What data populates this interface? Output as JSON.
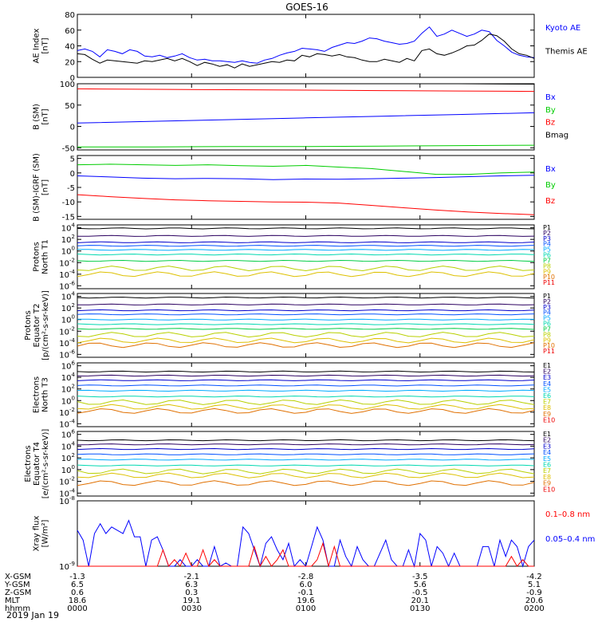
{
  "title": "GOES-16",
  "date_label": "2019 Jan 19",
  "colors": {
    "black": "#000000",
    "blue": "#0000ff",
    "red": "#ff0000",
    "green": "#00cc00",
    "p_colors": [
      "#000000",
      "#2b0060",
      "#0000cc",
      "#0050ff",
      "#00aaff",
      "#00d8b0",
      "#00cc44",
      "#b8d000",
      "#ddc000",
      "#e07000",
      "#ee0000"
    ],
    "e_colors": [
      "#000000",
      "#2b0060",
      "#0000cc",
      "#0050ff",
      "#00aaff",
      "#00d8b0",
      "#b8d000",
      "#ddc000",
      "#e07000",
      "#ee0000"
    ]
  },
  "chart_data": [
    {
      "id": "ae",
      "type": "line",
      "ylabel": [
        "AE Index",
        "[nT]"
      ],
      "ylim": [
        0,
        80
      ],
      "yticks": [
        "0",
        "20",
        "40",
        "60",
        "80"
      ],
      "legend": [
        {
          "label": "Kyoto AE",
          "color": "#0000ff"
        },
        {
          "label": "Themis AE",
          "color": "#000000"
        }
      ],
      "series": [
        {
          "name": "Kyoto AE",
          "color": "#0000ff",
          "values": [
            34,
            36,
            33,
            26,
            35,
            33,
            30,
            35,
            33,
            27,
            26,
            28,
            25,
            27,
            30,
            25,
            22,
            23,
            21,
            21,
            20,
            19,
            21,
            19,
            18,
            22,
            24,
            28,
            31,
            33,
            37,
            36,
            35,
            33,
            38,
            41,
            44,
            43,
            46,
            50,
            49,
            46,
            44,
            42,
            43,
            46,
            56,
            64,
            52,
            55,
            60,
            56,
            52,
            55,
            60,
            58,
            47,
            40,
            32,
            28,
            26,
            25
          ]
        },
        {
          "name": "Themis AE",
          "color": "#000000",
          "values": [
            30,
            29,
            23,
            18,
            22,
            21,
            20,
            19,
            18,
            21,
            20,
            22,
            24,
            21,
            24,
            20,
            15,
            19,
            17,
            14,
            16,
            12,
            17,
            14,
            16,
            18,
            20,
            19,
            22,
            21,
            28,
            26,
            30,
            29,
            27,
            29,
            26,
            25,
            22,
            20,
            20,
            23,
            21,
            19,
            24,
            21,
            34,
            36,
            30,
            28,
            31,
            35,
            40,
            41,
            47,
            55,
            53,
            46,
            36,
            30,
            28,
            24
          ]
        }
      ]
    },
    {
      "id": "bsm",
      "type": "line",
      "ylabel": [
        "B (SM)",
        "[nT]"
      ],
      "ylim": [
        -55,
        100
      ],
      "yticks": [
        "-50",
        "0",
        "50",
        "100"
      ],
      "legend": [
        {
          "label": "Bx",
          "color": "#0000ff"
        },
        {
          "label": "By",
          "color": "#00cc00"
        },
        {
          "label": "Bz",
          "color": "#ff0000"
        },
        {
          "label": "Bmag",
          "color": "#000000"
        }
      ],
      "series": [
        {
          "name": "Bx",
          "color": "#0000ff",
          "values": [
            8,
            12,
            16,
            20,
            24,
            28,
            32
          ]
        },
        {
          "name": "By",
          "color": "#00cc00",
          "values": [
            -48,
            -48,
            -47,
            -47,
            -46,
            -45,
            -44
          ]
        },
        {
          "name": "Bz",
          "color": "#ff0000",
          "values": [
            88,
            87,
            86,
            85,
            84,
            83,
            82
          ]
        },
        {
          "name": "Bmag",
          "color": "#000000",
          "values": [
            100,
            100,
            100,
            100,
            100,
            100,
            99
          ]
        }
      ]
    },
    {
      "id": "bdiff",
      "type": "line",
      "ylabel": [
        "B (SM)-IGRF (SM)",
        "[nT]"
      ],
      "ylim": [
        -16,
        6
      ],
      "yticks": [
        "-15",
        "-10",
        "-5",
        "0",
        "5"
      ],
      "legend": [
        {
          "label": "Bx",
          "color": "#0000ff"
        },
        {
          "label": "By",
          "color": "#00cc00"
        },
        {
          "label": "Bz",
          "color": "#ff0000"
        }
      ],
      "series": [
        {
          "name": "Bx",
          "color": "#0000ff",
          "values": [
            -1.0,
            -1.4,
            -1.8,
            -2.0,
            -1.9,
            -2.0,
            -2.3,
            -2.1,
            -2.2,
            -2.0,
            -1.8,
            -1.6,
            -1.3,
            -1.0,
            -0.8
          ]
        },
        {
          "name": "By",
          "color": "#00cc00",
          "values": [
            2.8,
            3.0,
            2.8,
            2.6,
            2.8,
            2.5,
            2.3,
            2.6,
            2.0,
            1.5,
            0.5,
            -0.5,
            -0.5,
            0.0,
            0.3
          ]
        },
        {
          "name": "Bz",
          "color": "#ff0000",
          "values": [
            -7.5,
            -8.2,
            -8.8,
            -9.3,
            -9.6,
            -9.8,
            -10.0,
            -10.1,
            -10.4,
            -11.2,
            -12.0,
            -12.8,
            -13.5,
            -14.0,
            -14.4
          ]
        }
      ]
    },
    {
      "id": "pn",
      "type": "line",
      "ylabel": [
        "Protons",
        "North T1"
      ],
      "ylim_log10": [
        -6.5,
        4.5
      ],
      "yticks": [
        "10^4",
        "10^2",
        "10^0",
        "10^-2",
        "10^-4",
        "10^-6"
      ],
      "channels": [
        "P1",
        "P2",
        "P3",
        "P4",
        "P5",
        "P6",
        "P7",
        "P8",
        "P9",
        "P10",
        "P11"
      ],
      "levels_log10": [
        3.9,
        2.6,
        1.5,
        0.9,
        0.2,
        -0.6,
        -1.7,
        -3.0,
        -4.0,
        null,
        null
      ]
    },
    {
      "id": "pe",
      "type": "line",
      "ylabel": [
        "Protons",
        "Equator T2",
        "[p/(cm²-s-sr-keV)]"
      ],
      "ylim_log10": [
        -6.5,
        4.5
      ],
      "yticks": [
        "10^4",
        "10^2",
        "10^0",
        "10^-2",
        "10^-4",
        "10^-6"
      ],
      "channels": [
        "P1",
        "P2",
        "P3",
        "P4",
        "P5",
        "P6",
        "P7",
        "P8",
        "P9",
        "P10",
        "P11"
      ],
      "levels_log10": [
        3.8,
        2.6,
        1.6,
        0.9,
        0.0,
        -0.8,
        -1.6,
        -2.6,
        -3.6,
        -4.4,
        null
      ]
    },
    {
      "id": "en",
      "type": "line",
      "ylabel": [
        "Electrons",
        "North T3"
      ],
      "ylim_log10": [
        -4.5,
        6.5
      ],
      "yticks": [
        "10^6",
        "10^4",
        "10^2",
        "10^0",
        "10^-2",
        "10^-4"
      ],
      "channels": [
        "E1",
        "E2",
        "E3",
        "E4",
        "E5",
        "E6",
        "E7",
        "E8",
        "E9",
        "E10"
      ],
      "levels_log10": [
        5.0,
        4.3,
        3.5,
        2.6,
        1.7,
        0.7,
        -0.3,
        -1.1,
        -1.8,
        null
      ]
    },
    {
      "id": "ee",
      "type": "line",
      "ylabel": [
        "Electrons",
        "Equator T4",
        "[e/(cm²-s-sr-keV)]"
      ],
      "ylim_log10": [
        -4.5,
        6.5
      ],
      "yticks": [
        "10^6",
        "10^4",
        "10^2",
        "10^0",
        "10^-2",
        "10^-4"
      ],
      "channels": [
        "E1",
        "E2",
        "E3",
        "E4",
        "E5",
        "E6",
        "E7",
        "E8",
        "E9",
        "E10"
      ],
      "levels_log10": [
        5.0,
        4.3,
        3.5,
        2.6,
        1.7,
        0.7,
        -0.3,
        -1.0,
        -2.3,
        null
      ]
    },
    {
      "id": "xray",
      "type": "line",
      "ylabel": [
        "Xray flux",
        "[W/m²]"
      ],
      "ylim_log10": [
        -9,
        -8
      ],
      "yticks": [
        "10^-8",
        "10^-9"
      ],
      "legend": [
        {
          "label": "0.1–0.8 nm",
          "color": "#ff0000"
        },
        {
          "label": "0.05–0.4 nm",
          "color": "#0000ff"
        }
      ],
      "series": [
        {
          "name": "0.05-0.4 nm",
          "color": "#0000ff",
          "values_log10": [
            -8.45,
            -8.6,
            -9.0,
            -8.5,
            -8.35,
            -8.5,
            -8.4,
            -8.45,
            -8.5,
            -8.3,
            -8.55,
            -8.55,
            -9.0,
            -8.6,
            -8.55,
            -8.75,
            -9.0,
            -9.0,
            -8.9,
            -9.0,
            -9.0,
            -8.9,
            -9.0,
            -9.0,
            -8.7,
            -9.0,
            -8.95,
            -9.0,
            -9.0,
            -8.4,
            -8.5,
            -8.75,
            -9.0,
            -8.65,
            -8.55,
            -8.75,
            -8.9,
            -8.65,
            -9.0,
            -8.9,
            -9.0,
            -8.7,
            -8.4,
            -8.6,
            -9.0,
            -9.0,
            -8.6,
            -8.85,
            -9.0,
            -8.7,
            -8.9,
            -9.0,
            -9.0,
            -8.8,
            -8.6,
            -8.9,
            -9.0,
            -9.0,
            -8.75,
            -9.0,
            -8.5,
            -8.6,
            -9.0,
            -8.7,
            -8.8,
            -9.0,
            -8.8,
            -9.0,
            -9.0,
            -9.0,
            -9.0,
            -8.7,
            -8.7,
            -9.0,
            -8.6,
            -8.85,
            -8.6,
            -8.7,
            -9.0,
            -8.7,
            -8.6
          ]
        },
        {
          "name": "0.1-0.8 nm",
          "color": "#ff0000",
          "values_log10": [
            -9.0,
            -9.0,
            -9.0,
            -9.0,
            -9.0,
            -9.0,
            -9.0,
            -9.0,
            -9.0,
            -9.0,
            -9.0,
            -9.0,
            -9.0,
            -9.0,
            -9.0,
            -8.75,
            -9.0,
            -8.9,
            -9.0,
            -8.8,
            -9.0,
            -9.0,
            -8.75,
            -9.0,
            -8.9,
            -9.0,
            -9.0,
            -9.0,
            -9.0,
            -9.0,
            -9.0,
            -8.7,
            -9.0,
            -8.85,
            -9.0,
            -8.9,
            -8.75,
            -9.0,
            -9.0,
            -9.0,
            -9.0,
            -9.0,
            -8.9,
            -8.65,
            -9.0,
            -8.7,
            -9.0,
            -9.0,
            -9.0,
            -9.0,
            -9.0,
            -9.0,
            -9.0,
            -9.0,
            -9.0,
            -9.0,
            -9.0,
            -9.0,
            -9.0,
            -9.0,
            -9.0,
            -9.0,
            -9.0,
            -9.0,
            -9.0,
            -9.0,
            -9.0,
            -9.0,
            -9.0,
            -9.0,
            -9.0,
            -9.0,
            -9.0,
            -9.0,
            -9.0,
            -9.0,
            -8.85,
            -9.0,
            -8.9,
            -9.0,
            -9.0
          ]
        }
      ]
    }
  ],
  "x_axis": {
    "row_labels": [
      "X-GSM",
      "Y-GSM",
      "Z-GSM",
      "MLT",
      "hhmm"
    ],
    "ticks": [
      [
        "-1.3",
        "6.5",
        "0.6",
        "18.6",
        "0000"
      ],
      [
        "-2.1",
        "6.3",
        "0.3",
        "19.1",
        "0030"
      ],
      [
        "-2.8",
        "6.0",
        "-0.1",
        "19.6",
        "0100"
      ],
      [
        "-3.5",
        "5.6",
        "-0.5",
        "20.1",
        "0130"
      ],
      [
        "-4.2",
        "5.1",
        "-0.9",
        "20.6",
        "0200"
      ]
    ]
  }
}
